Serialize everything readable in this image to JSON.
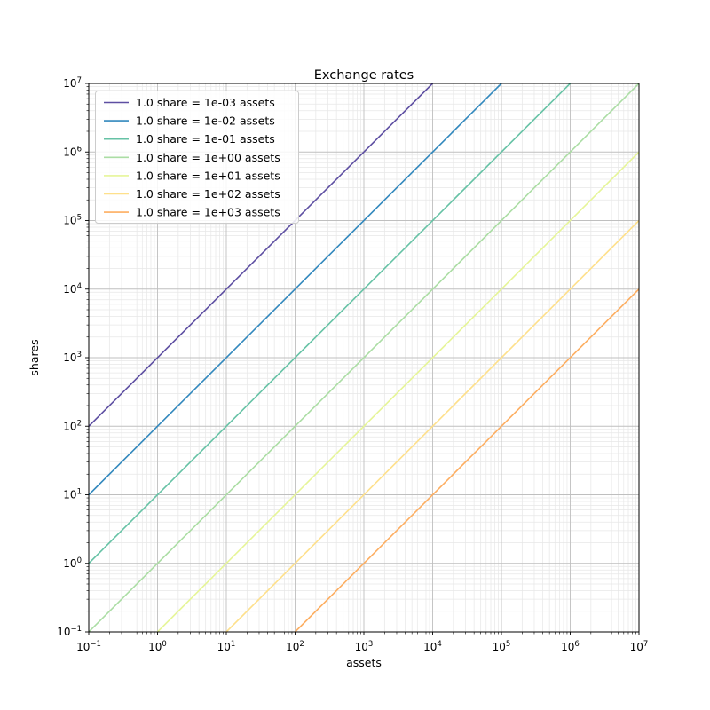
{
  "chart_data": {
    "type": "line",
    "title": "Exchange rates",
    "xlabel": "assets",
    "ylabel": "shares",
    "xscale": "log",
    "yscale": "log",
    "xlim": [
      0.1,
      10000000
    ],
    "ylim": [
      0.1,
      10000000
    ],
    "tick_exponents": [
      -1,
      0,
      1,
      2,
      3,
      4,
      5,
      6,
      7
    ],
    "grid": {
      "which": "both",
      "major_color": "#bfbfbf",
      "minor_color": "#e7e7e7"
    },
    "legend": {
      "position": "upper left"
    },
    "series": [
      {
        "label": "1.0 share = 1e-03 assets",
        "assets_per_share": 0.001,
        "color": "#5e4fa2",
        "points_xy": [
          [
            0.1,
            100
          ],
          [
            10000,
            10000000
          ]
        ]
      },
      {
        "label": "1.0 share = 1e-02 assets",
        "assets_per_share": 0.01,
        "color": "#3288bd",
        "points_xy": [
          [
            0.1,
            10
          ],
          [
            100000,
            10000000
          ]
        ]
      },
      {
        "label": "1.0 share = 1e-01 assets",
        "assets_per_share": 0.1,
        "color": "#66c2a5",
        "points_xy": [
          [
            0.1,
            1
          ],
          [
            1000000,
            10000000
          ]
        ]
      },
      {
        "label": "1.0 share = 1e+00 assets",
        "assets_per_share": 1,
        "color": "#abdda4",
        "points_xy": [
          [
            0.1,
            0.1
          ],
          [
            10000000,
            10000000
          ]
        ]
      },
      {
        "label": "1.0 share = 1e+01 assets",
        "assets_per_share": 10,
        "color": "#e6f598",
        "points_xy": [
          [
            1,
            0.1
          ],
          [
            10000000,
            1000000
          ]
        ]
      },
      {
        "label": "1.0 share = 1e+02 assets",
        "assets_per_share": 100,
        "color": "#fee08b",
        "points_xy": [
          [
            10,
            0.1
          ],
          [
            10000000,
            100000
          ]
        ]
      },
      {
        "label": "1.0 share = 1e+03 assets",
        "assets_per_share": 1000,
        "color": "#fdae61",
        "points_xy": [
          [
            100,
            0.1
          ],
          [
            10000000,
            10000
          ]
        ]
      }
    ]
  }
}
